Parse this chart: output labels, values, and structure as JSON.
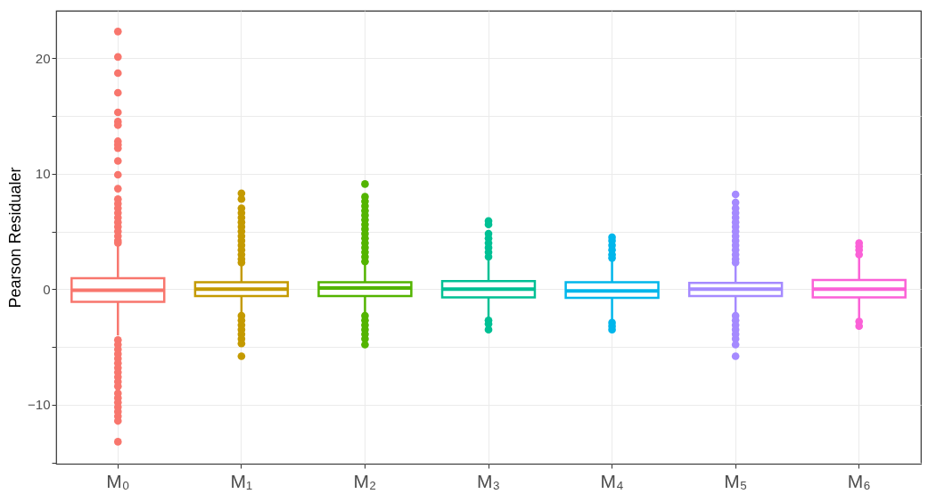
{
  "chart_data": {
    "type": "box",
    "ylabel": "Pearson Residualer",
    "categories": [
      "M₀",
      "M₁",
      "M₂",
      "M₃",
      "M₄",
      "M₅",
      "M₆"
    ],
    "colors": [
      "#f8766d",
      "#c49a00",
      "#53b400",
      "#00c094",
      "#00b6eb",
      "#a58aff",
      "#fb61d7"
    ],
    "ylim": [
      -15.1,
      24.1
    ],
    "yticks": [
      {
        "value": -15,
        "label": null
      },
      -10,
      {
        "value": -5,
        "label": null
      },
      0,
      {
        "value": 5,
        "label": null
      },
      10,
      {
        "value": 15,
        "label": null
      },
      20
    ],
    "grid": true,
    "boxes": [
      {
        "low": -4.0,
        "q1": -1.1,
        "median": -0.1,
        "q3": 0.95,
        "high": 3.8,
        "outliers": [
          22.3,
          20.1,
          18.7,
          17.0,
          15.3,
          14.5,
          14.2,
          12.8,
          12.5,
          12.2,
          11.1,
          9.9,
          8.7,
          7.8,
          7.4,
          7.0,
          6.6,
          6.2,
          5.8,
          5.4,
          5.0,
          4.6,
          4.2,
          4.0,
          -4.4,
          -4.8,
          -5.2,
          -5.6,
          -6.0,
          -6.4,
          -6.8,
          -7.2,
          -7.6,
          -8.0,
          -8.4,
          -9.0,
          -9.4,
          -9.8,
          -10.2,
          -10.6,
          -11.0,
          -11.4,
          -13.2
        ]
      },
      {
        "low": -2.1,
        "q1": -0.6,
        "median": 0.0,
        "q3": 0.6,
        "high": 2.2,
        "outliers": [
          8.3,
          7.8,
          7.0,
          6.6,
          6.2,
          5.8,
          5.4,
          5.0,
          4.6,
          4.2,
          3.8,
          3.4,
          3.0,
          2.6,
          2.3,
          -2.3,
          -2.7,
          -3.1,
          -3.5,
          -3.9,
          -4.3,
          -4.7,
          -5.8
        ]
      },
      {
        "low": -2.1,
        "q1": -0.6,
        "median": 0.1,
        "q3": 0.6,
        "high": 2.2,
        "outliers": [
          9.1,
          8.0,
          7.6,
          7.2,
          6.8,
          6.4,
          6.0,
          5.6,
          5.2,
          4.8,
          4.4,
          4.0,
          3.6,
          3.2,
          2.8,
          2.4,
          -2.3,
          -2.7,
          -3.1,
          -3.5,
          -3.9,
          -4.3,
          -4.8
        ]
      },
      {
        "low": -2.6,
        "q1": -0.7,
        "median": 0.0,
        "q3": 0.7,
        "high": 2.6,
        "outliers": [
          5.9,
          5.6,
          4.8,
          4.4,
          4.0,
          3.6,
          3.2,
          2.8,
          -2.7,
          -3.0,
          -3.5
        ]
      },
      {
        "low": -2.9,
        "q1": -0.75,
        "median": -0.15,
        "q3": 0.6,
        "high": 2.6,
        "outliers": [
          4.5,
          4.2,
          3.8,
          3.4,
          3.0,
          2.7,
          -2.9,
          -3.2,
          -3.5
        ]
      },
      {
        "low": -2.2,
        "q1": -0.6,
        "median": 0.0,
        "q3": 0.55,
        "high": 2.2,
        "outliers": [
          8.2,
          7.5,
          7.0,
          6.6,
          6.2,
          5.8,
          5.4,
          5.0,
          4.6,
          4.2,
          3.8,
          3.4,
          3.0,
          2.6,
          2.3,
          -2.3,
          -2.7,
          -3.1,
          -3.5,
          -3.9,
          -4.3,
          -4.8,
          -5.8
        ]
      },
      {
        "low": -2.6,
        "q1": -0.7,
        "median": 0.0,
        "q3": 0.8,
        "high": 2.8,
        "outliers": [
          4.0,
          3.7,
          3.4,
          3.0,
          -2.8,
          -3.2
        ]
      }
    ]
  }
}
